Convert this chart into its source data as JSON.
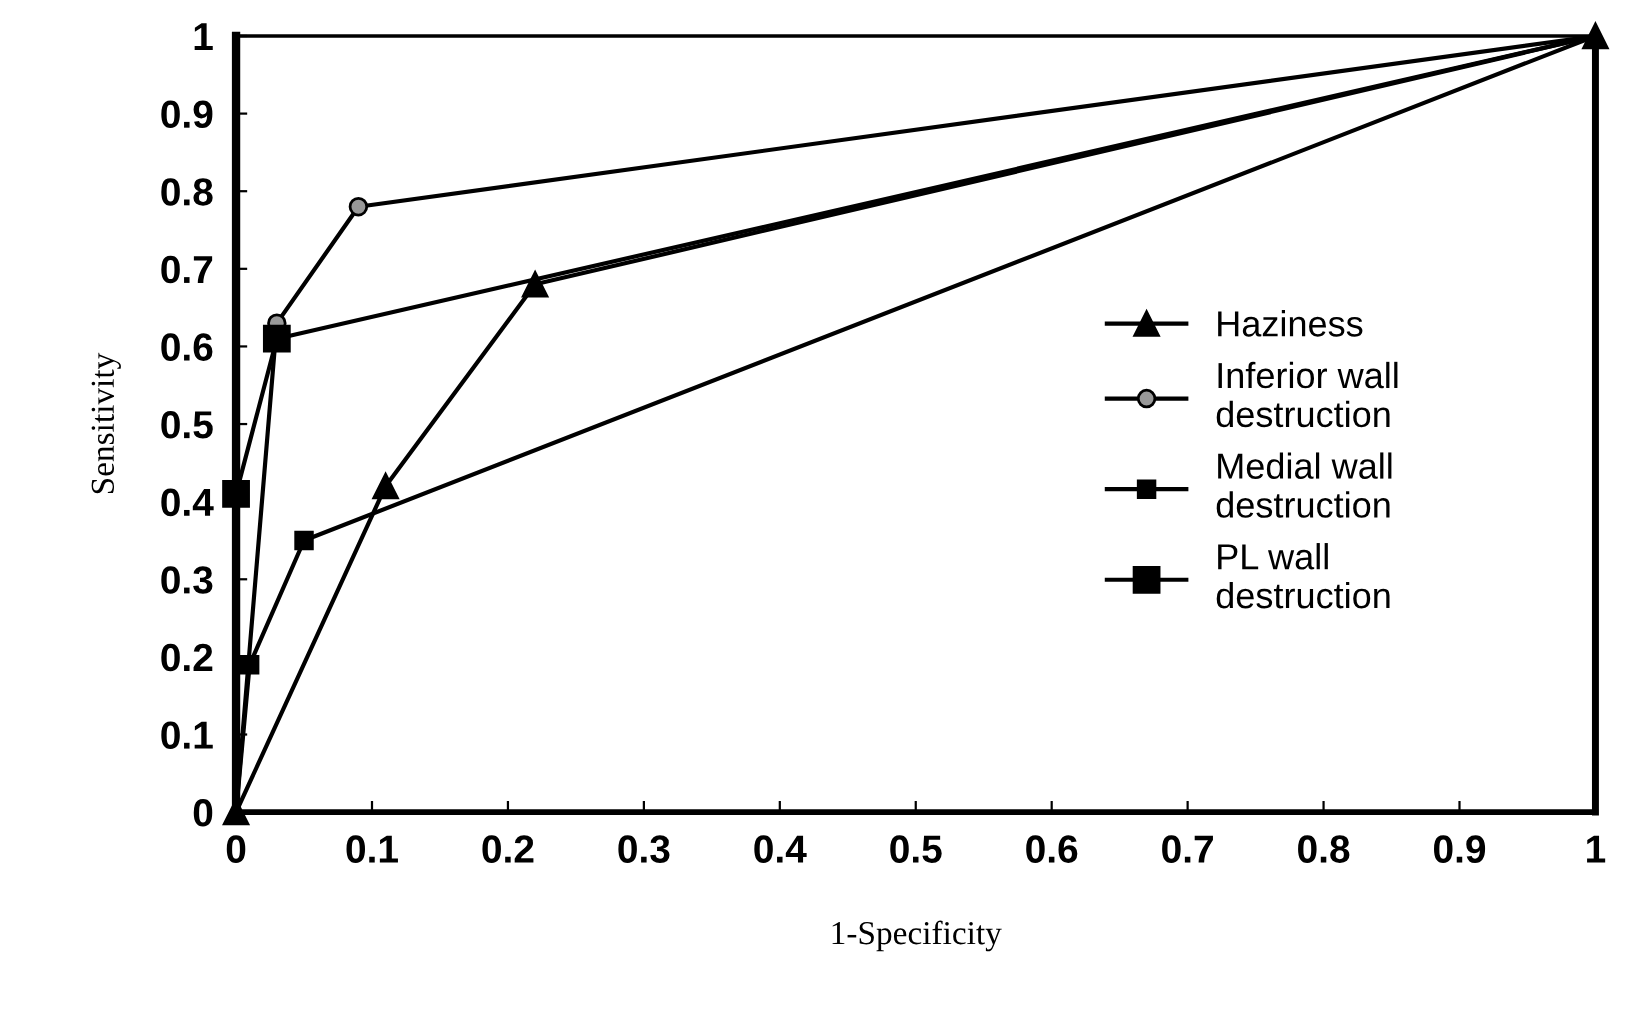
{
  "chart_data": {
    "type": "line",
    "xlabel": "1-Specificity",
    "ylabel": "Sensitivity",
    "xlim": [
      0,
      1
    ],
    "ylim": [
      0,
      1
    ],
    "xticks": [
      0,
      0.1,
      0.2,
      0.3,
      0.4,
      0.5,
      0.6,
      0.7,
      0.8,
      0.9,
      1
    ],
    "yticks": [
      0,
      0.1,
      0.2,
      0.3,
      0.4,
      0.5,
      0.6,
      0.7,
      0.8,
      0.9,
      1
    ],
    "grid": false,
    "legend": "right",
    "line_style": "solid",
    "series": [
      {
        "name": "Haziness",
        "color": "#000000",
        "marker": "triangle",
        "x": [
          0,
          0.11,
          0.22,
          1
        ],
        "values": [
          0,
          0.42,
          0.68,
          1
        ]
      },
      {
        "name": "Inferior wall\ndestruction",
        "color": "#000000",
        "marker": "circle",
        "x": [
          0,
          0.03,
          0.09,
          1
        ],
        "values": [
          0,
          0.63,
          0.78,
          1
        ]
      },
      {
        "name": "Medial wall\ndestruction",
        "color": "#000000",
        "marker": "square",
        "x": [
          0,
          0.01,
          0.05,
          1
        ],
        "values": [
          0,
          0.19,
          0.35,
          1
        ]
      },
      {
        "name": "PL wall\ndestruction",
        "color": "#000000",
        "marker": "square",
        "x": [
          0,
          0,
          0.03,
          1
        ],
        "values": [
          0,
          0.41,
          0.61,
          1
        ]
      }
    ]
  }
}
